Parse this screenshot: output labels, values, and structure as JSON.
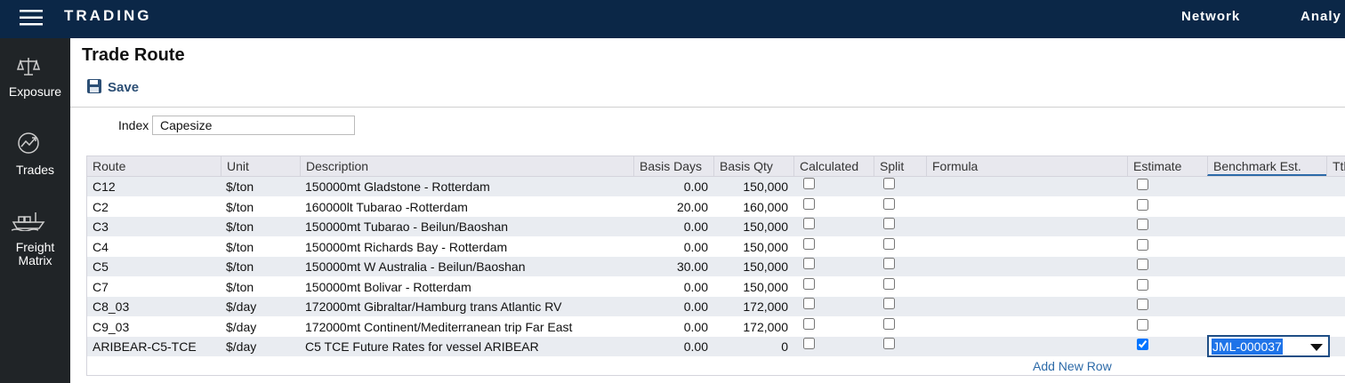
{
  "header": {
    "brand": "TRADING",
    "nav": [
      "Network",
      "Analy"
    ]
  },
  "sidebar": [
    "Exposure",
    "Trades",
    "Freight Matrix"
  ],
  "page": {
    "title": "Trade Route",
    "save": "Save",
    "index_label": "Index",
    "index_value": "Capesize"
  },
  "table": {
    "columns": [
      "Route",
      "Unit",
      "Description",
      "Basis Days",
      "Basis Qty",
      "Calculated",
      "Split",
      "Formula",
      "Estimate",
      "Benchmark Est.",
      "Ttl"
    ],
    "rows": [
      {
        "route": "C12",
        "unit": "$/ton",
        "description": "150000mt Gladstone - Rotterdam",
        "basis_days": "0.00",
        "basis_qty": "150,000",
        "calculated": false,
        "split": false,
        "estimate": false
      },
      {
        "route": "C2",
        "unit": "$/ton",
        "description": "160000lt Tubarao -Rotterdam",
        "basis_days": "20.00",
        "basis_qty": "160,000",
        "calculated": false,
        "split": false,
        "estimate": false
      },
      {
        "route": "C3",
        "unit": "$/ton",
        "description": "150000mt Tubarao - Beilun/Baoshan",
        "basis_days": "0.00",
        "basis_qty": "150,000",
        "calculated": false,
        "split": false,
        "estimate": false
      },
      {
        "route": "C4",
        "unit": "$/ton",
        "description": "150000mt Richards Bay - Rotterdam",
        "basis_days": "0.00",
        "basis_qty": "150,000",
        "calculated": false,
        "split": false,
        "estimate": false
      },
      {
        "route": "C5",
        "unit": "$/ton",
        "description": "150000mt W Australia - Beilun/Baoshan",
        "basis_days": "30.00",
        "basis_qty": "150,000",
        "calculated": false,
        "split": false,
        "estimate": false
      },
      {
        "route": "C7",
        "unit": "$/ton",
        "description": "150000mt Bolivar - Rotterdam",
        "basis_days": "0.00",
        "basis_qty": "150,000",
        "calculated": false,
        "split": false,
        "estimate": false
      },
      {
        "route": "C8_03",
        "unit": "$/day",
        "description": "172000mt Gibraltar/Hamburg trans Atlantic RV",
        "basis_days": "0.00",
        "basis_qty": "172,000",
        "calculated": false,
        "split": false,
        "estimate": false
      },
      {
        "route": "C9_03",
        "unit": "$/day",
        "description": "172000mt Continent/Mediterranean trip Far East",
        "basis_days": "0.00",
        "basis_qty": "172,000",
        "calculated": false,
        "split": false,
        "estimate": false
      },
      {
        "route": "ARIBEAR-C5-TCE",
        "unit": "$/day",
        "description": "C5 TCE Future Rates for vessel ARIBEAR",
        "basis_days": "0.00",
        "basis_qty": "0",
        "calculated": false,
        "split": false,
        "estimate": true,
        "benchmark": "JML-000037"
      }
    ],
    "add_row": "Add New Row"
  }
}
